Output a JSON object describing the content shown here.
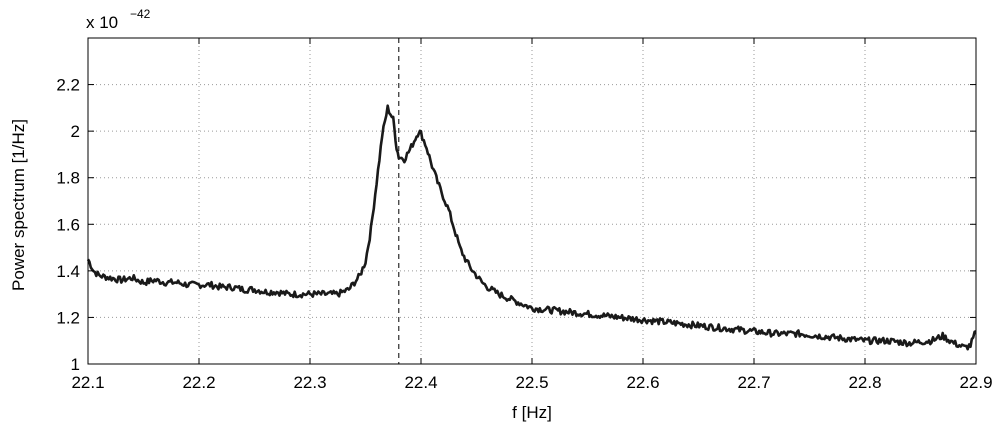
{
  "chart_data": {
    "type": "line",
    "title": "",
    "xlabel": "f [Hz]",
    "ylabel": "Power spectrum [1/Hz]",
    "y_scale_label": {
      "base": "x 10",
      "exponent": "−42"
    },
    "xlim": [
      22.1,
      22.9
    ],
    "ylim": [
      1.0,
      2.4
    ],
    "grid": true,
    "x_ticks": [
      22.1,
      22.2,
      22.3,
      22.4,
      22.5,
      22.6,
      22.7,
      22.8,
      22.9
    ],
    "x_tick_labels": [
      "22.1",
      "22.2",
      "22.3",
      "22.4",
      "22.5",
      "22.6",
      "22.7",
      "22.8",
      "22.9"
    ],
    "y_ticks": [
      1.0,
      1.2,
      1.4,
      1.6,
      1.8,
      2.0,
      2.2
    ],
    "y_tick_labels": [
      "1",
      "1.2",
      "1.4",
      "1.6",
      "1.8",
      "2",
      "2.2"
    ],
    "vertical_marker_x": 22.38,
    "series": [
      {
        "color": "#1a1a1a",
        "x": [
          22.1,
          22.105,
          22.11,
          22.12,
          22.13,
          22.14,
          22.15,
          22.16,
          22.17,
          22.18,
          22.19,
          22.2,
          22.21,
          22.22,
          22.23,
          22.24,
          22.25,
          22.26,
          22.27,
          22.28,
          22.29,
          22.3,
          22.31,
          22.32,
          22.325,
          22.33,
          22.335,
          22.34,
          22.345,
          22.35,
          22.355,
          22.36,
          22.365,
          22.37,
          22.375,
          22.378,
          22.38,
          22.385,
          22.39,
          22.395,
          22.398,
          22.4,
          22.405,
          22.41,
          22.415,
          22.42,
          22.425,
          22.43,
          22.435,
          22.44,
          22.445,
          22.45,
          22.455,
          22.46,
          22.47,
          22.48,
          22.49,
          22.5,
          22.52,
          22.54,
          22.56,
          22.58,
          22.6,
          22.62,
          22.64,
          22.66,
          22.68,
          22.7,
          22.72,
          22.74,
          22.76,
          22.78,
          22.8,
          22.82,
          22.84,
          22.86,
          22.87,
          22.88,
          22.89,
          22.895,
          22.9
        ],
        "y": [
          1.45,
          1.4,
          1.38,
          1.37,
          1.36,
          1.37,
          1.35,
          1.36,
          1.35,
          1.35,
          1.34,
          1.34,
          1.34,
          1.33,
          1.33,
          1.32,
          1.32,
          1.31,
          1.31,
          1.3,
          1.3,
          1.3,
          1.3,
          1.3,
          1.3,
          1.31,
          1.32,
          1.35,
          1.38,
          1.44,
          1.58,
          1.78,
          1.98,
          2.1,
          2.05,
          1.93,
          1.89,
          1.88,
          1.92,
          1.97,
          2.0,
          1.99,
          1.93,
          1.85,
          1.78,
          1.72,
          1.66,
          1.58,
          1.5,
          1.45,
          1.41,
          1.38,
          1.35,
          1.33,
          1.3,
          1.28,
          1.26,
          1.24,
          1.23,
          1.22,
          1.21,
          1.2,
          1.19,
          1.18,
          1.17,
          1.16,
          1.15,
          1.14,
          1.13,
          1.13,
          1.12,
          1.11,
          1.1,
          1.1,
          1.09,
          1.1,
          1.12,
          1.09,
          1.07,
          1.08,
          1.14
        ]
      }
    ]
  }
}
